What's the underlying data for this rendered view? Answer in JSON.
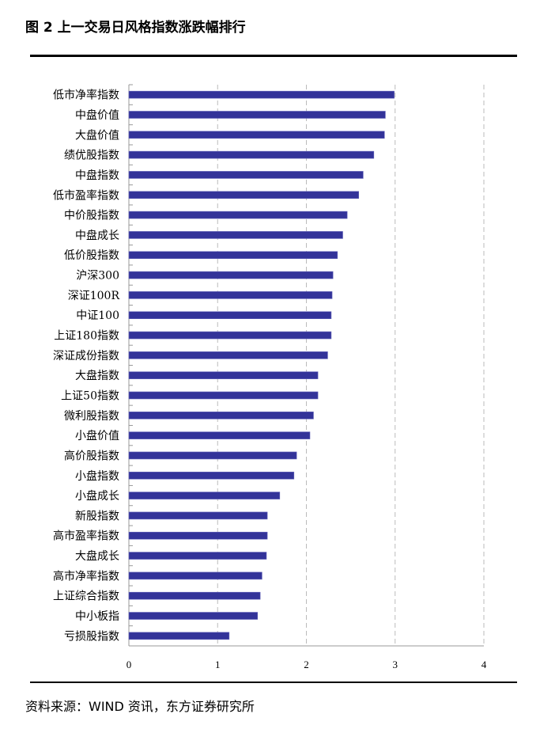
{
  "title": "图 2  上一交易日风格指数涨跌幅排行",
  "source": "资料来源：WIND 资讯，东方证券研究所",
  "chart_data": {
    "type": "bar",
    "orientation": "horizontal",
    "title": "",
    "xlabel": "",
    "ylabel": "",
    "xlim": [
      0,
      4
    ],
    "xticks": [
      "0",
      "1",
      "2",
      "3",
      "4"
    ],
    "grid": "vertical dashed",
    "bar_color": "#333399",
    "categories": [
      "低市净率指数",
      "中盘价值",
      "大盘价值",
      "绩优股指数",
      "中盘指数",
      "低市盈率指数",
      "中价股指数",
      "中盘成长",
      "低价股指数",
      "沪深300",
      "深证100R",
      "中证100",
      "上证180指数",
      "深证成份指数",
      "大盘指数",
      "上证50指数",
      "微利股指数",
      "小盘价值",
      "高价股指数",
      "小盘指数",
      "小盘成长",
      "新股指数",
      "高市盈率指数",
      "大盘成长",
      "高市净率指数",
      "上证综合指数",
      "中小板指",
      "亏损股指数"
    ],
    "values": [
      2.99,
      2.89,
      2.88,
      2.76,
      2.64,
      2.59,
      2.46,
      2.41,
      2.35,
      2.3,
      2.29,
      2.28,
      2.28,
      2.24,
      2.13,
      2.13,
      2.08,
      2.04,
      1.89,
      1.86,
      1.7,
      1.56,
      1.56,
      1.55,
      1.5,
      1.48,
      1.45,
      1.13
    ]
  }
}
